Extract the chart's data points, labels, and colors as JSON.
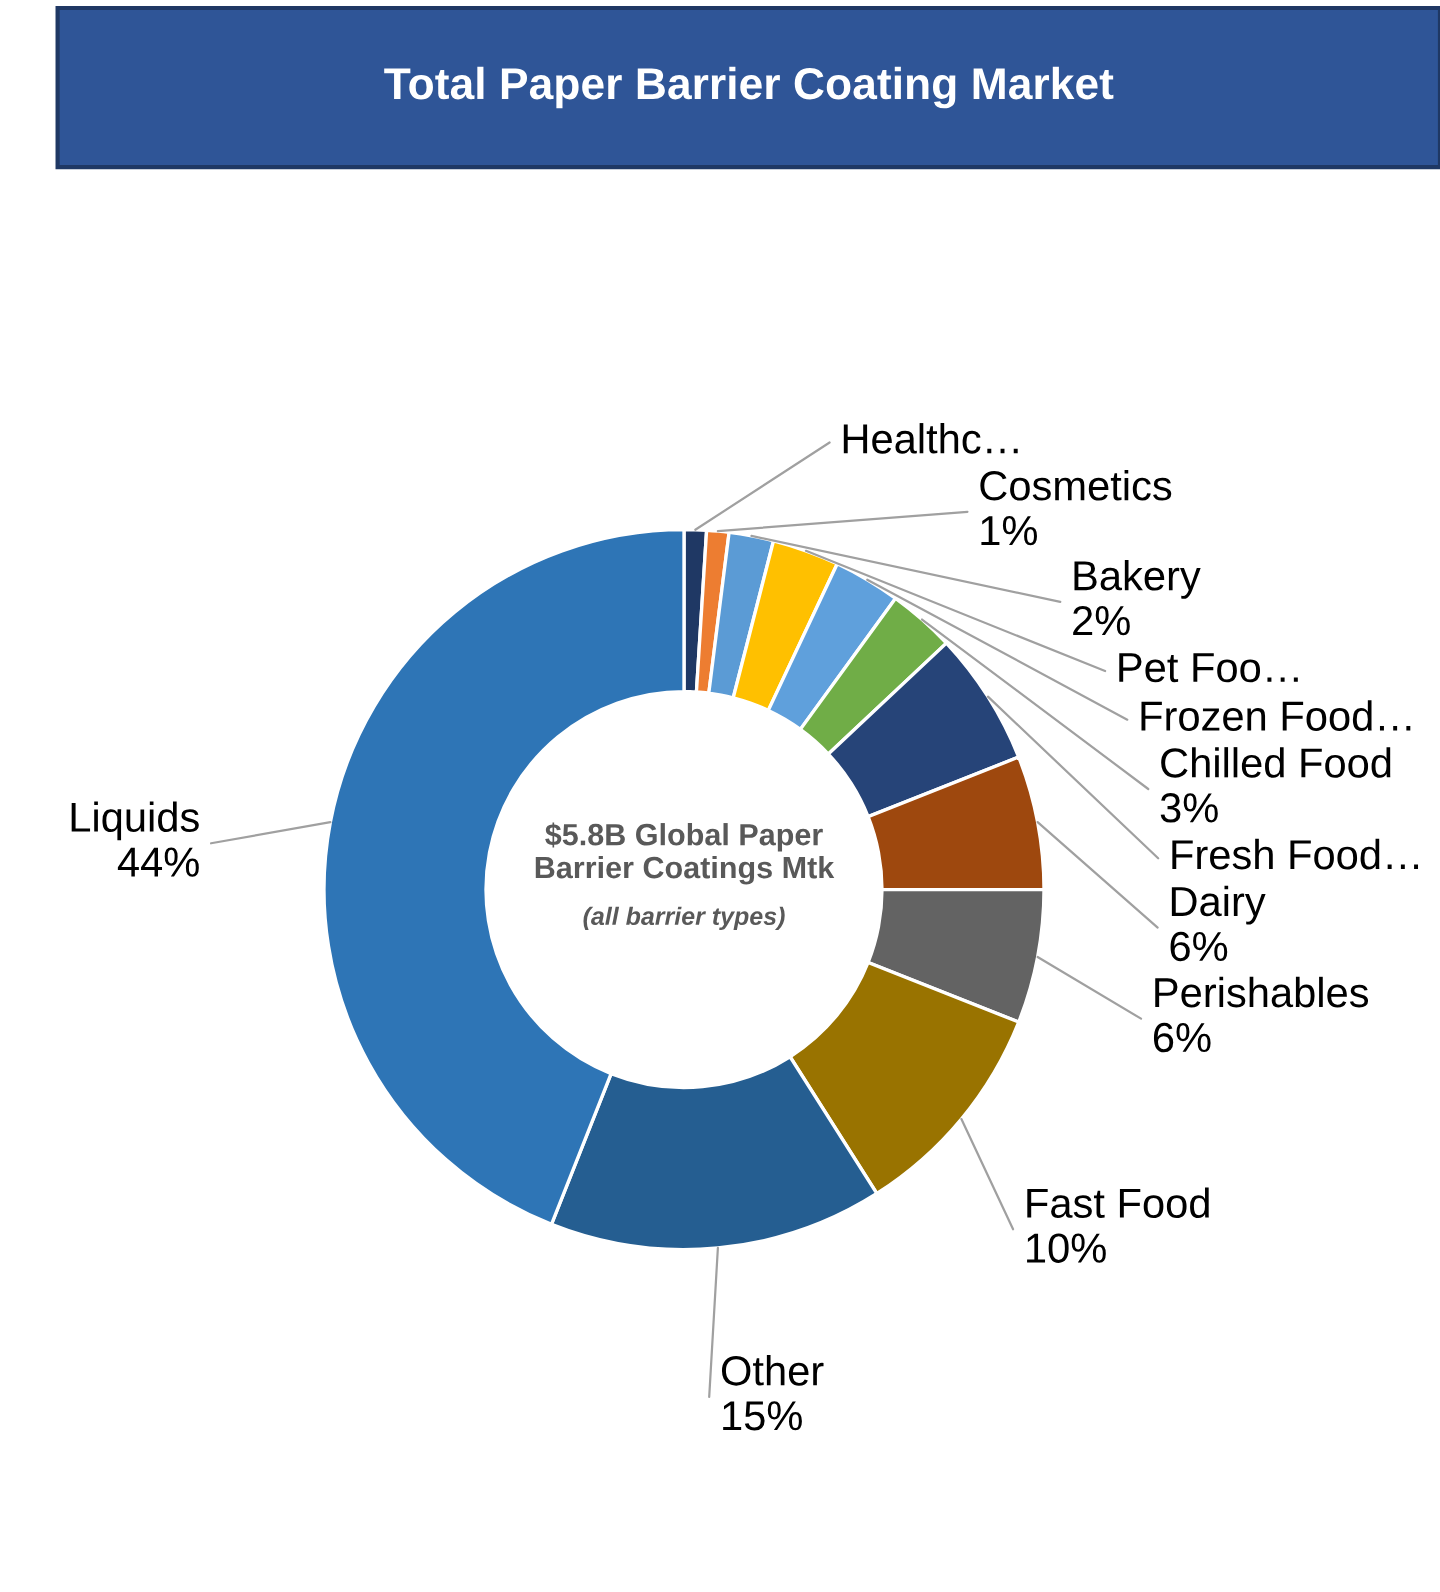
{
  "chart_data": {
    "type": "donut",
    "title": "Total Paper Barrier Coating Market",
    "categories": [
      "Healthc…",
      "Cosmetics",
      "Bakery",
      "Pet Foo…",
      "Frozen Food…",
      "Chilled Food",
      "Fresh Food…",
      "Dairy",
      "Perishables",
      "Fast Food",
      "Other",
      "Liquids"
    ],
    "values": [
      1,
      1,
      2,
      3,
      3,
      3,
      6,
      6,
      6,
      10,
      15,
      44
    ],
    "value_labels": [
      null,
      "1%",
      "2%",
      null,
      null,
      "3%",
      null,
      "6%",
      "6%",
      "10%",
      "15%",
      "44%"
    ],
    "colors": [
      "#1f3864",
      "#ed7d31",
      "#5b9bd5",
      "#ffc000",
      "#5fa0dc",
      "#70ad47",
      "#264478",
      "#9e480e",
      "#636363",
      "#997300",
      "#255e91",
      "#2e75b6"
    ],
    "annotations": [
      "$5.8B Global Paper\nBarrier Coatings Mtk",
      "(all barrier types)"
    ]
  }
}
